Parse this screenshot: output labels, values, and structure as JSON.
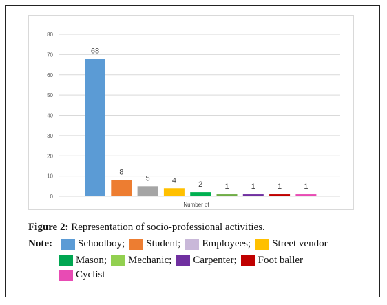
{
  "chart_data": {
    "type": "bar",
    "categories": [
      "Schoolboy",
      "Student",
      "Employees",
      "Street vendor",
      "Mason",
      "Mechanic",
      "Carpenter",
      "Foot baller",
      "Cyclist"
    ],
    "values": [
      68,
      8,
      5,
      4,
      2,
      1,
      1,
      1,
      1
    ],
    "colors": [
      "#5b9bd5",
      "#ed7d31",
      "#a5a5a5",
      "#ffc000",
      "#00b050",
      "#70ad47",
      "#7030a0",
      "#c00000",
      "#e84bb4"
    ],
    "xlabel": "Number of",
    "ylabel": "",
    "ylim": [
      0,
      80
    ],
    "yticks": [
      0,
      10,
      20,
      30,
      40,
      50,
      60,
      70,
      80
    ],
    "grid": true,
    "data_labels": [
      "68",
      "8",
      "5",
      "4",
      "2",
      "1",
      "1",
      "1",
      "1"
    ]
  },
  "caption": {
    "label": "Figure 2:",
    "text": " Representation of socio-professional activities."
  },
  "note": {
    "label": "Note",
    "separator": ":",
    "items": [
      {
        "label": "Schoolboy;",
        "color": "#5b9bd5"
      },
      {
        "label": "Student;",
        "color": "#ed7d31"
      },
      {
        "label": "Employees;",
        "color": "#c9b8d9"
      },
      {
        "label": "Street vendor",
        "color": "#ffc000"
      },
      {
        "label": "Mason;",
        "color": "#00a651"
      },
      {
        "label": "Mechanic;",
        "color": "#92d050"
      },
      {
        "label": "Carpenter;",
        "color": "#7030a0"
      },
      {
        "label": "Foot baller",
        "color": "#c00000"
      },
      {
        "label": "Cyclist",
        "color": "#e84bb4"
      }
    ]
  }
}
